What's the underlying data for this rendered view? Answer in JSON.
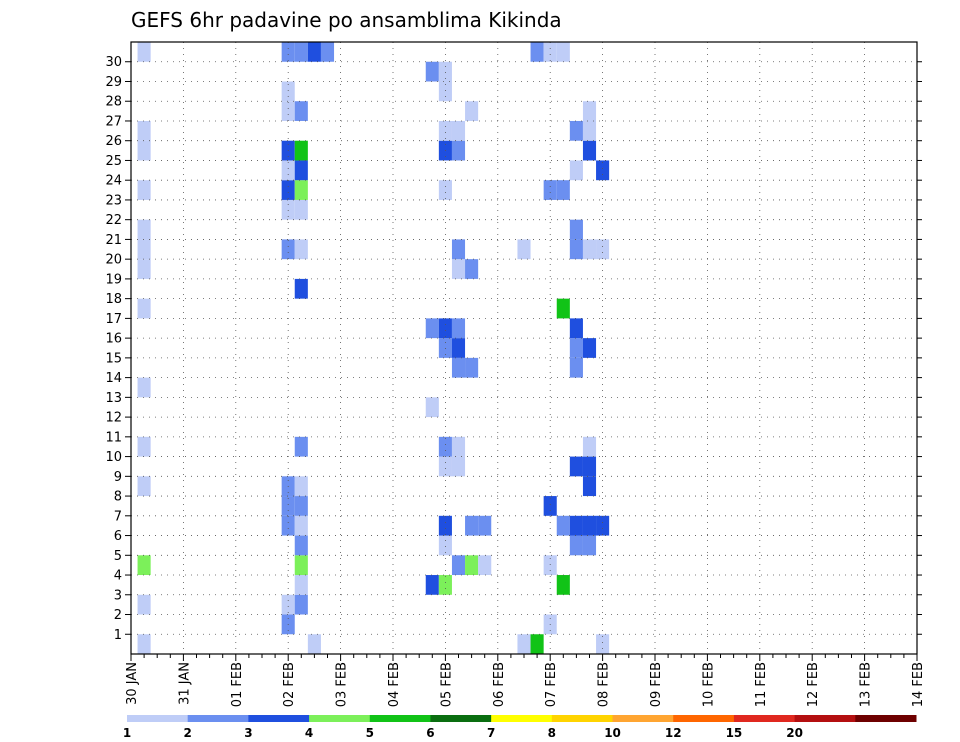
{
  "chart_data": {
    "type": "heatmap",
    "title": "GEFS 6hr padavine po ansamblima Kikinda",
    "x_tick_labels": [
      "30 JAN",
      "31 JAN",
      "01 FEB",
      "02 FEB",
      "03 FEB",
      "04 FEB",
      "05 FEB",
      "06 FEB",
      "07 FEB",
      "08 FEB",
      "09 FEB",
      "10 FEB",
      "11 FEB",
      "12 FEB",
      "13 FEB",
      "14 FEB"
    ],
    "y_tick_labels": [
      "1",
      "2",
      "3",
      "4",
      "5",
      "6",
      "7",
      "8",
      "9",
      "10",
      "11",
      "12",
      "13",
      "14",
      "15",
      "16",
      "17",
      "18",
      "19",
      "20",
      "21",
      "22",
      "23",
      "24",
      "25",
      "26",
      "27",
      "28",
      "29",
      "30"
    ],
    "grid": true,
    "levels": [
      1,
      2,
      3,
      4,
      5,
      6,
      7,
      8,
      10,
      12,
      15,
      20
    ],
    "level_labels": [
      "1",
      "2",
      "3",
      "4",
      "5",
      "6",
      "7",
      "8",
      "10",
      "12",
      "15",
      "20"
    ],
    "colors": [
      "#bfcdf7",
      "#6b8ff0",
      "#1f4fdf",
      "#7cf05a",
      "#11c317",
      "#0a6e10",
      "#ffff00",
      "#ffd400",
      "#ffa531",
      "#ff6600",
      "#e0281f",
      "#b40f10",
      "#6e0000"
    ],
    "time_axis": {
      "start": "30 JAN 00Z",
      "step_hours": 6
    },
    "cells": [
      {
        "t": 1,
        "m": 0,
        "v": 1
      },
      {
        "t": 1,
        "m": 2,
        "v": 1
      },
      {
        "t": 1,
        "m": 4,
        "v": 4
      },
      {
        "t": 1,
        "m": 8,
        "v": 1
      },
      {
        "t": 1,
        "m": 10,
        "v": 1
      },
      {
        "t": 1,
        "m": 13,
        "v": 1
      },
      {
        "t": 1,
        "m": 17,
        "v": 1
      },
      {
        "t": 1,
        "m": 19,
        "v": 1
      },
      {
        "t": 1,
        "m": 20,
        "v": 1
      },
      {
        "t": 1,
        "m": 21,
        "v": 1
      },
      {
        "t": 1,
        "m": 23,
        "v": 1
      },
      {
        "t": 1,
        "m": 25,
        "v": 1
      },
      {
        "t": 1,
        "m": 26,
        "v": 1
      },
      {
        "t": 1,
        "m": 30,
        "v": 1
      },
      {
        "t": 12,
        "m": 1,
        "v": 2
      },
      {
        "t": 12,
        "m": 2,
        "v": 1
      },
      {
        "t": 12,
        "m": 6,
        "v": 2
      },
      {
        "t": 12,
        "m": 7,
        "v": 2
      },
      {
        "t": 12,
        "m": 8,
        "v": 2
      },
      {
        "t": 12,
        "m": 20,
        "v": 2
      },
      {
        "t": 12,
        "m": 22,
        "v": 1
      },
      {
        "t": 12,
        "m": 23,
        "v": 3
      },
      {
        "t": 12,
        "m": 24,
        "v": 1
      },
      {
        "t": 12,
        "m": 25,
        "v": 3
      },
      {
        "t": 12,
        "m": 27,
        "v": 1
      },
      {
        "t": 12,
        "m": 28,
        "v": 1
      },
      {
        "t": 12,
        "m": 30,
        "v": 2
      },
      {
        "t": 13,
        "m": 2,
        "v": 2
      },
      {
        "t": 13,
        "m": 3,
        "v": 1
      },
      {
        "t": 13,
        "m": 4,
        "v": 4
      },
      {
        "t": 13,
        "m": 5,
        "v": 2
      },
      {
        "t": 13,
        "m": 6,
        "v": 1
      },
      {
        "t": 13,
        "m": 7,
        "v": 2
      },
      {
        "t": 13,
        "m": 8,
        "v": 1
      },
      {
        "t": 13,
        "m": 10,
        "v": 2
      },
      {
        "t": 13,
        "m": 18,
        "v": 3
      },
      {
        "t": 13,
        "m": 20,
        "v": 1
      },
      {
        "t": 13,
        "m": 22,
        "v": 1
      },
      {
        "t": 13,
        "m": 23,
        "v": 4
      },
      {
        "t": 13,
        "m": 24,
        "v": 3
      },
      {
        "t": 13,
        "m": 25,
        "v": 5
      },
      {
        "t": 13,
        "m": 27,
        "v": 2
      },
      {
        "t": 13,
        "m": 30,
        "v": 2
      },
      {
        "t": 14,
        "m": 0,
        "v": 1
      },
      {
        "t": 14,
        "m": 30,
        "v": 3
      },
      {
        "t": 15,
        "m": 30,
        "v": 2
      },
      {
        "t": 23,
        "m": 3,
        "v": 3
      },
      {
        "t": 23,
        "m": 12,
        "v": 1
      },
      {
        "t": 23,
        "m": 16,
        "v": 2
      },
      {
        "t": 23,
        "m": 29,
        "v": 2
      },
      {
        "t": 24,
        "m": 3,
        "v": 4
      },
      {
        "t": 24,
        "m": 5,
        "v": 1
      },
      {
        "t": 24,
        "m": 6,
        "v": 3
      },
      {
        "t": 24,
        "m": 9,
        "v": 1
      },
      {
        "t": 24,
        "m": 10,
        "v": 2
      },
      {
        "t": 24,
        "m": 15,
        "v": 2
      },
      {
        "t": 24,
        "m": 16,
        "v": 3
      },
      {
        "t": 24,
        "m": 23,
        "v": 1
      },
      {
        "t": 24,
        "m": 25,
        "v": 3
      },
      {
        "t": 24,
        "m": 26,
        "v": 1
      },
      {
        "t": 24,
        "m": 28,
        "v": 1
      },
      {
        "t": 24,
        "m": 29,
        "v": 1
      },
      {
        "t": 25,
        "m": 4,
        "v": 2
      },
      {
        "t": 25,
        "m": 9,
        "v": 1
      },
      {
        "t": 25,
        "m": 10,
        "v": 1
      },
      {
        "t": 25,
        "m": 14,
        "v": 2
      },
      {
        "t": 25,
        "m": 15,
        "v": 3
      },
      {
        "t": 25,
        "m": 16,
        "v": 2
      },
      {
        "t": 25,
        "m": 19,
        "v": 1
      },
      {
        "t": 25,
        "m": 20,
        "v": 2
      },
      {
        "t": 25,
        "m": 25,
        "v": 2
      },
      {
        "t": 25,
        "m": 26,
        "v": 1
      },
      {
        "t": 26,
        "m": 4,
        "v": 4
      },
      {
        "t": 26,
        "m": 6,
        "v": 2
      },
      {
        "t": 26,
        "m": 14,
        "v": 2
      },
      {
        "t": 26,
        "m": 19,
        "v": 2
      },
      {
        "t": 26,
        "m": 27,
        "v": 1
      },
      {
        "t": 27,
        "m": 4,
        "v": 1
      },
      {
        "t": 27,
        "m": 6,
        "v": 2
      },
      {
        "t": 30,
        "m": 0,
        "v": 1
      },
      {
        "t": 30,
        "m": 20,
        "v": 1
      },
      {
        "t": 31,
        "m": 0,
        "v": 5
      },
      {
        "t": 31,
        "m": 30,
        "v": 2
      },
      {
        "t": 32,
        "m": 1,
        "v": 1
      },
      {
        "t": 32,
        "m": 4,
        "v": 1
      },
      {
        "t": 32,
        "m": 7,
        "v": 3
      },
      {
        "t": 32,
        "m": 23,
        "v": 2
      },
      {
        "t": 32,
        "m": 30,
        "v": 1
      },
      {
        "t": 33,
        "m": 3,
        "v": 5
      },
      {
        "t": 33,
        "m": 6,
        "v": 2
      },
      {
        "t": 33,
        "m": 17,
        "v": 5
      },
      {
        "t": 33,
        "m": 23,
        "v": 2
      },
      {
        "t": 33,
        "m": 30,
        "v": 1
      },
      {
        "t": 34,
        "m": 5,
        "v": 2
      },
      {
        "t": 34,
        "m": 6,
        "v": 3
      },
      {
        "t": 34,
        "m": 9,
        "v": 3
      },
      {
        "t": 34,
        "m": 14,
        "v": 2
      },
      {
        "t": 34,
        "m": 15,
        "v": 2
      },
      {
        "t": 34,
        "m": 16,
        "v": 3
      },
      {
        "t": 34,
        "m": 20,
        "v": 2
      },
      {
        "t": 34,
        "m": 21,
        "v": 2
      },
      {
        "t": 34,
        "m": 24,
        "v": 1
      },
      {
        "t": 34,
        "m": 26,
        "v": 2
      },
      {
        "t": 35,
        "m": 5,
        "v": 2
      },
      {
        "t": 35,
        "m": 6,
        "v": 3
      },
      {
        "t": 35,
        "m": 8,
        "v": 3
      },
      {
        "t": 35,
        "m": 9,
        "v": 3
      },
      {
        "t": 35,
        "m": 10,
        "v": 1
      },
      {
        "t": 35,
        "m": 15,
        "v": 3
      },
      {
        "t": 35,
        "m": 20,
        "v": 1
      },
      {
        "t": 35,
        "m": 25,
        "v": 3
      },
      {
        "t": 35,
        "m": 26,
        "v": 1
      },
      {
        "t": 35,
        "m": 27,
        "v": 1
      },
      {
        "t": 36,
        "m": 0,
        "v": 1
      },
      {
        "t": 36,
        "m": 6,
        "v": 3
      },
      {
        "t": 36,
        "m": 20,
        "v": 1
      },
      {
        "t": 36,
        "m": 24,
        "v": 3
      }
    ]
  }
}
